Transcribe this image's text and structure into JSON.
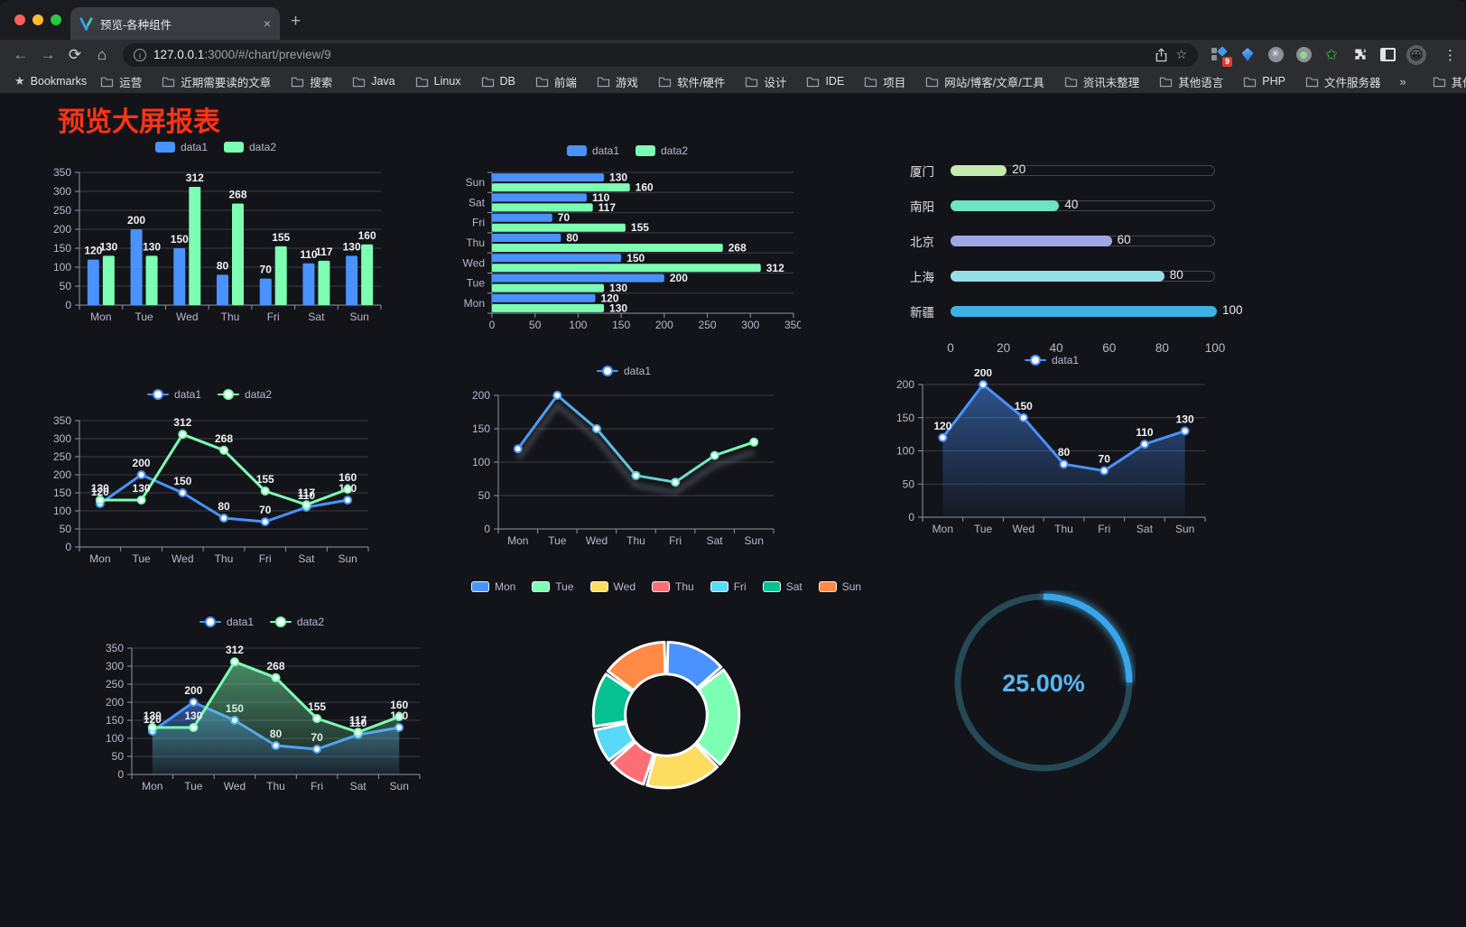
{
  "browser": {
    "tab_title": "预览-各种组件",
    "new_tab": "+",
    "close_tab": "×",
    "url_host": "127.0.0.1",
    "url_rest": ":3000/#/chart/preview/9",
    "bookmarks_label": "Bookmarks",
    "bookmark_items": [
      "运营",
      "近期需要读的文章",
      "搜索",
      "Java",
      "Linux",
      "DB",
      "前端",
      "游戏",
      "软件/硬件",
      "设计",
      "IDE",
      "项目",
      "网站/博客/文章/工具",
      "资讯未整理",
      "其他语言",
      "PHP",
      "文件服务器"
    ],
    "bookmarks_overflow": "»",
    "other_bookmarks": "其他书签",
    "extension_badge": "9",
    "avatar_emoji": "😀"
  },
  "page": {
    "title": "预览大屏报表",
    "title_color": "#ff3317",
    "background": "#131419"
  },
  "colors": {
    "axis_label": "#b9b8ce",
    "grid_line": "#3a3b44",
    "axis_line": "#9094a2",
    "value_label": "#f0f1f5",
    "blue": "#4992ff",
    "green": "#7cffb2"
  },
  "chart_data": [
    {
      "id": "bar-grouped",
      "type": "bar",
      "categories": [
        "Mon",
        "Tue",
        "Wed",
        "Thu",
        "Fri",
        "Sat",
        "Sun"
      ],
      "series": [
        {
          "name": "data1",
          "color": "#4992ff",
          "values": [
            120,
            200,
            150,
            80,
            70,
            110,
            130
          ]
        },
        {
          "name": "data2",
          "color": "#7cffb2",
          "values": [
            130,
            130,
            312,
            268,
            155,
            117,
            160
          ]
        }
      ],
      "ylim": [
        0,
        350
      ],
      "ytick": 50,
      "labels": true,
      "legend_position": "top",
      "grid": true
    },
    {
      "id": "bar-horizontal",
      "type": "bar-horizontal",
      "categories": [
        "Mon",
        "Tue",
        "Wed",
        "Thu",
        "Fri",
        "Sat",
        "Sun"
      ],
      "category_axis_order": "bottom-to-top",
      "series": [
        {
          "name": "data1",
          "color": "#4992ff",
          "values": [
            120,
            200,
            150,
            80,
            70,
            110,
            130
          ]
        },
        {
          "name": "data2",
          "color": "#7cffb2",
          "values": [
            130,
            130,
            312,
            268,
            155,
            117,
            160
          ]
        }
      ],
      "xlim": [
        0,
        350
      ],
      "xtick": 50,
      "labels": true,
      "legend_position": "top",
      "grid": true
    },
    {
      "id": "progress-bars",
      "type": "progress-bars",
      "categories": [
        "厦门",
        "南阳",
        "北京",
        "上海",
        "新疆"
      ],
      "values": [
        20,
        40,
        60,
        80,
        100
      ],
      "colors": [
        "#c4ebad",
        "#6be6c1",
        "#a0a7e6",
        "#96dee8",
        "#3fb1e3"
      ],
      "xlim": [
        0,
        100
      ],
      "xticks": [
        0,
        20,
        40,
        60,
        80,
        100
      ]
    },
    {
      "id": "line-two",
      "type": "line",
      "categories": [
        "Mon",
        "Tue",
        "Wed",
        "Thu",
        "Fri",
        "Sat",
        "Sun"
      ],
      "series": [
        {
          "name": "data1",
          "color": "#4992ff",
          "values": [
            120,
            200,
            150,
            80,
            70,
            110,
            130
          ]
        },
        {
          "name": "data2",
          "color": "#7cffb2",
          "values": [
            130,
            130,
            312,
            268,
            155,
            117,
            160
          ]
        }
      ],
      "ylim": [
        0,
        350
      ],
      "ytick": 50,
      "labels": true,
      "legend_position": "top",
      "grid": true
    },
    {
      "id": "line-gradient",
      "type": "line",
      "categories": [
        "Mon",
        "Tue",
        "Wed",
        "Thu",
        "Fri",
        "Sat",
        "Sun"
      ],
      "series": [
        {
          "name": "data1",
          "color_gradient": [
            "#4992ff",
            "#7cffb2"
          ],
          "values": [
            120,
            200,
            150,
            80,
            70,
            110,
            130
          ],
          "shadow": true
        }
      ],
      "ylim": [
        0,
        200
      ],
      "ytick": 50,
      "labels": false,
      "legend_position": "top",
      "grid": true
    },
    {
      "id": "area-single",
      "type": "area",
      "categories": [
        "Mon",
        "Tue",
        "Wed",
        "Thu",
        "Fri",
        "Sat",
        "Sun"
      ],
      "series": [
        {
          "name": "data1",
          "color": "#4992ff",
          "values": [
            120,
            200,
            150,
            80,
            70,
            110,
            130
          ],
          "area": true
        }
      ],
      "ylim": [
        0,
        200
      ],
      "ytick": 50,
      "labels": true,
      "legend_position": "top",
      "grid": true
    },
    {
      "id": "area-two",
      "type": "area",
      "categories": [
        "Mon",
        "Tue",
        "Wed",
        "Thu",
        "Fri",
        "Sat",
        "Sun"
      ],
      "series": [
        {
          "name": "data1",
          "color": "#4992ff",
          "values": [
            120,
            200,
            150,
            80,
            70,
            110,
            130
          ],
          "area": true
        },
        {
          "name": "data2",
          "color": "#7cffb2",
          "values": [
            130,
            130,
            312,
            268,
            155,
            117,
            160
          ],
          "area": true
        }
      ],
      "ylim": [
        0,
        350
      ],
      "ytick": 50,
      "labels": true,
      "legend_position": "top",
      "grid": true
    },
    {
      "id": "donut",
      "type": "pie",
      "categories": [
        "Mon",
        "Tue",
        "Wed",
        "Thu",
        "Fri",
        "Sat",
        "Sun"
      ],
      "values": [
        120,
        200,
        150,
        80,
        70,
        110,
        130
      ],
      "colors": [
        "#4992ff",
        "#7cffb2",
        "#fddd60",
        "#ff6e76",
        "#58d9f9",
        "#05c091",
        "#ff8a45"
      ],
      "legend_position": "top",
      "inner_radius_ratio": 0.56,
      "border_color": "#ffffff"
    },
    {
      "id": "gauge",
      "type": "gauge",
      "value": 25,
      "max": 100,
      "label": "25.00%",
      "color": "#38a6ec",
      "track_color": "#254a56",
      "text_color": "#56b7f3"
    }
  ]
}
